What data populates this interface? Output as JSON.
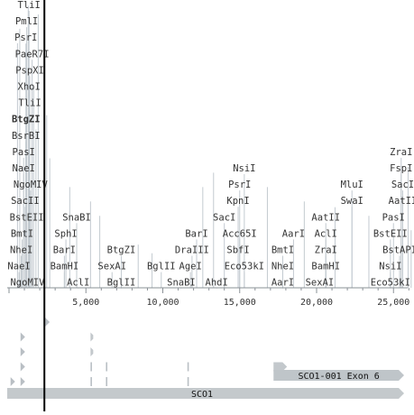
{
  "ruler": {
    "ticks": [
      {
        "pos": 5000,
        "label": "5,000"
      },
      {
        "pos": 10000,
        "label": "10,000"
      },
      {
        "pos": 15000,
        "label": "15,000"
      },
      {
        "pos": 20000,
        "label": "20,000"
      },
      {
        "pos": 25000,
        "label": "25,000"
      }
    ]
  },
  "cursor": {
    "pos": 2300
  },
  "enzymes": [
    {
      "name": "TliI",
      "pos": 1300,
      "row": 0
    },
    {
      "name": "PmlI",
      "pos": 1150,
      "row": 1
    },
    {
      "name": "PsrI",
      "pos": 1100,
      "row": 2
    },
    {
      "name": "PaeR7I",
      "pos": 1500,
      "row": 3
    },
    {
      "name": "PspXI",
      "pos": 1350,
      "row": 4
    },
    {
      "name": "XhoI",
      "pos": 1300,
      "row": 5
    },
    {
      "name": "TliI",
      "pos": 1350,
      "row": 6
    },
    {
      "name": "BtgZI",
      "pos": 1100,
      "row": 7,
      "bold": true
    },
    {
      "name": "BsrBI",
      "pos": 1100,
      "row": 8
    },
    {
      "name": "PasI",
      "pos": 950,
      "row": 9
    },
    {
      "name": "NaeI",
      "pos": 950,
      "row": 10
    },
    {
      "name": "NgoMIV",
      "pos": 1400,
      "row": 11
    },
    {
      "name": "SacII",
      "pos": 1050,
      "row": 12
    },
    {
      "name": "BstEII",
      "pos": 1150,
      "row": 13
    },
    {
      "name": "BmtI",
      "pos": 850,
      "row": 14
    },
    {
      "name": "NheI",
      "pos": 800,
      "row": 15
    },
    {
      "name": "NaeI",
      "pos": 650,
      "row": 16
    },
    {
      "name": "NgoMIV",
      "pos": 1200,
      "row": 17
    },
    {
      "name": "SnaBI",
      "pos": 4400,
      "row": 13
    },
    {
      "name": "SphI",
      "pos": 3700,
      "row": 14
    },
    {
      "name": "BarI",
      "pos": 3600,
      "row": 15
    },
    {
      "name": "BamHI",
      "pos": 3600,
      "row": 16
    },
    {
      "name": "AclI",
      "pos": 4500,
      "row": 17
    },
    {
      "name": "BtgZI",
      "pos": 7300,
      "row": 15
    },
    {
      "name": "SexAI",
      "pos": 6700,
      "row": 16
    },
    {
      "name": "BglII",
      "pos": 7300,
      "row": 17
    },
    {
      "name": "BglII",
      "pos": 9900,
      "row": 16
    },
    {
      "name": "BarI",
      "pos": 12200,
      "row": 14
    },
    {
      "name": "DraIII",
      "pos": 11900,
      "row": 15
    },
    {
      "name": "AgeI",
      "pos": 11800,
      "row": 16
    },
    {
      "name": "SnaBI",
      "pos": 11200,
      "row": 17
    },
    {
      "name": "NsiI",
      "pos": 15300,
      "row": 10
    },
    {
      "name": "PsrI",
      "pos": 15000,
      "row": 11
    },
    {
      "name": "KpnI",
      "pos": 14900,
      "row": 12
    },
    {
      "name": "SacI",
      "pos": 14000,
      "row": 13
    },
    {
      "name": "Acc65I",
      "pos": 15000,
      "row": 14
    },
    {
      "name": "SbfI",
      "pos": 14900,
      "row": 15
    },
    {
      "name": "Eco53kI",
      "pos": 15300,
      "row": 16
    },
    {
      "name": "AhdI",
      "pos": 13500,
      "row": 17
    },
    {
      "name": "AarI",
      "pos": 18500,
      "row": 14
    },
    {
      "name": "BmtI",
      "pos": 17800,
      "row": 15
    },
    {
      "name": "NheI",
      "pos": 17800,
      "row": 16
    },
    {
      "name": "AarI",
      "pos": 17800,
      "row": 17
    },
    {
      "name": "MluI",
      "pos": 22300,
      "row": 11
    },
    {
      "name": "SwaI",
      "pos": 22300,
      "row": 12
    },
    {
      "name": "AatII",
      "pos": 20600,
      "row": 13
    },
    {
      "name": "AclI",
      "pos": 20600,
      "row": 14
    },
    {
      "name": "ZraI",
      "pos": 20600,
      "row": 15
    },
    {
      "name": "BamHI",
      "pos": 20600,
      "row": 16
    },
    {
      "name": "SexAI",
      "pos": 20200,
      "row": 17
    },
    {
      "name": "ZraI",
      "pos": 25500,
      "row": 9
    },
    {
      "name": "FspI",
      "pos": 25500,
      "row": 10
    },
    {
      "name": "SacI",
      "pos": 25600,
      "row": 11
    },
    {
      "name": "AatII",
      "pos": 25600,
      "row": 12
    },
    {
      "name": "BstEII",
      "pos": 24800,
      "row": 14
    },
    {
      "name": "PasI",
      "pos": 25000,
      "row": 13
    },
    {
      "name": "BstAPI",
      "pos": 25400,
      "row": 15
    },
    {
      "name": "NsiI",
      "pos": 24800,
      "row": 16
    },
    {
      "name": "Eco53kI",
      "pos": 24800,
      "row": 17
    }
  ],
  "extra_cut_lines": [
    {
      "pos": 550,
      "height": 0.85
    },
    {
      "pos": 700,
      "height": 0.9
    },
    {
      "pos": 1250,
      "height": 0.98
    },
    {
      "pos": 1600,
      "height": 0.7
    },
    {
      "pos": 1750,
      "height": 0.55
    },
    {
      "pos": 1900,
      "height": 0.95
    },
    {
      "pos": 2450,
      "height": 0.6
    },
    {
      "pos": 2650,
      "height": 0.45
    },
    {
      "pos": 3950,
      "height": 0.35
    },
    {
      "pos": 5300,
      "height": 0.3
    },
    {
      "pos": 5900,
      "height": 0.25
    },
    {
      "pos": 8400,
      "height": 0.15
    },
    {
      "pos": 9300,
      "height": 0.12
    },
    {
      "pos": 12600,
      "height": 0.35
    },
    {
      "pos": 13300,
      "height": 0.4
    },
    {
      "pos": 16800,
      "height": 0.35
    },
    {
      "pos": 19200,
      "height": 0.3
    },
    {
      "pos": 21200,
      "height": 0.28
    },
    {
      "pos": 23400,
      "height": 0.25
    },
    {
      "pos": 25950,
      "height": 0.42
    },
    {
      "pos": 26150,
      "height": 0.2
    }
  ],
  "markers": [
    {
      "pos": 2350,
      "row": 0,
      "kind": "tri"
    },
    {
      "pos": 750,
      "row": 1,
      "kind": "tri"
    },
    {
      "pos": 5300,
      "row": 1,
      "kind": "half"
    },
    {
      "pos": 750,
      "row": 2,
      "kind": "tri"
    },
    {
      "pos": 5300,
      "row": 2,
      "kind": "half"
    },
    {
      "pos": 750,
      "row": 3,
      "kind": "tri"
    },
    {
      "pos": 5300,
      "row": 3,
      "kind": "tick"
    },
    {
      "pos": 6300,
      "row": 3,
      "kind": "tick"
    },
    {
      "pos": 11600,
      "row": 3,
      "kind": "tick"
    },
    {
      "pos": 17200,
      "row": 3,
      "kind": "arrowbox"
    },
    {
      "pos": 100,
      "row": 4,
      "kind": "tri"
    },
    {
      "pos": 750,
      "row": 4,
      "kind": "tri"
    },
    {
      "pos": 5300,
      "row": 4,
      "kind": "tick"
    },
    {
      "pos": 6300,
      "row": 4,
      "kind": "tick"
    },
    {
      "pos": 11600,
      "row": 4,
      "kind": "tick"
    }
  ],
  "features": {
    "exon_label": "SCO1-001 Exon 6",
    "gene_label": "SCO1"
  }
}
